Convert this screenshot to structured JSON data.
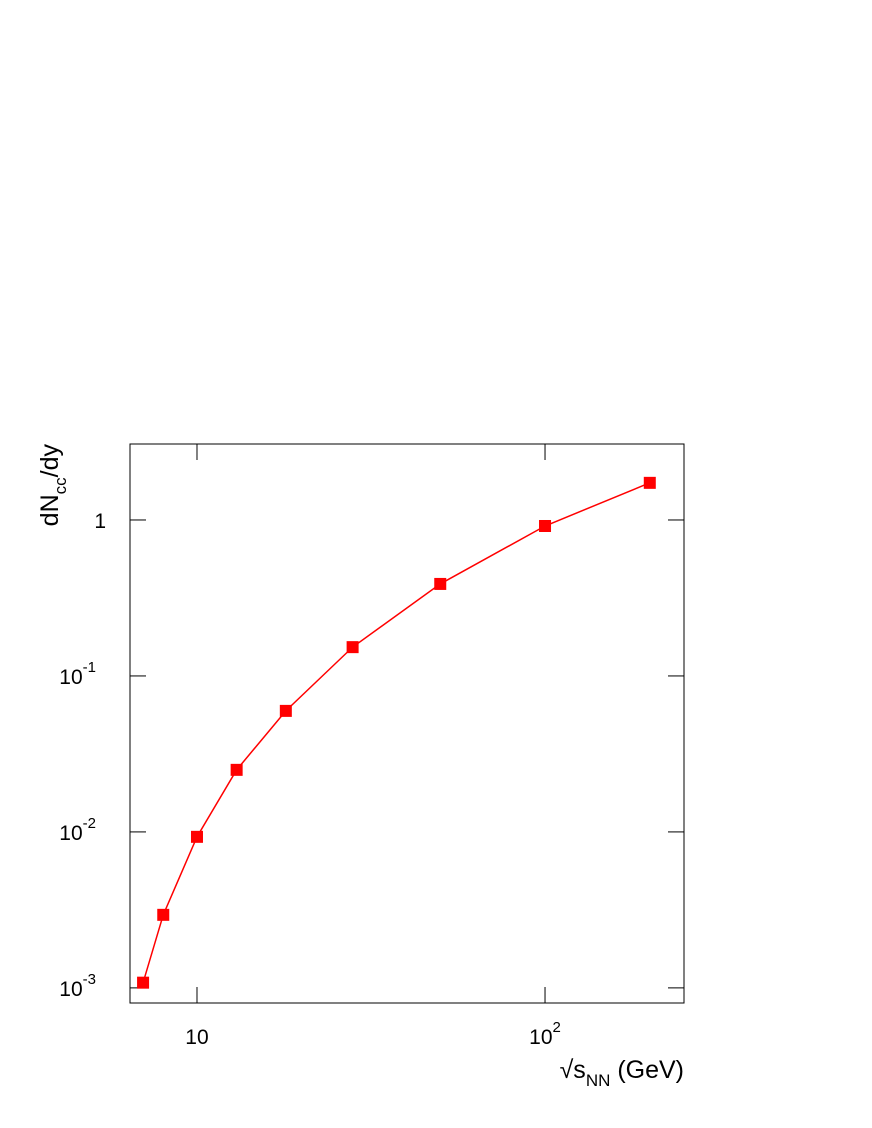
{
  "chart_data": {
    "type": "line",
    "xlabel": [
      "√s",
      "NN",
      " (GeV)"
    ],
    "ylabel": [
      "dN",
      "cc",
      "/dy"
    ],
    "x": [
      7,
      8,
      10,
      13,
      18,
      28,
      50,
      100,
      200
    ],
    "series": [
      {
        "color": "#ff0000",
        "values": [
          0.00108,
          0.00294,
          0.0093,
          0.025,
          0.0597,
          0.153,
          0.389,
          0.915,
          1.73
        ]
      }
    ],
    "xscale": "log",
    "yscale": "log",
    "xlim": [
      6.42,
      250.8
    ],
    "ylim": [
      0.0008,
      3.07
    ],
    "xticks": [
      10,
      {
        "value": 100,
        "label": "10",
        "sup": "2"
      }
    ],
    "yticks": [
      {
        "value": 0.001,
        "label": "10",
        "sup": "-3"
      },
      {
        "value": 0.01,
        "label": "10",
        "sup": "-2"
      },
      {
        "value": 0.1,
        "label": "10",
        "sup": "-1"
      },
      1
    ]
  }
}
